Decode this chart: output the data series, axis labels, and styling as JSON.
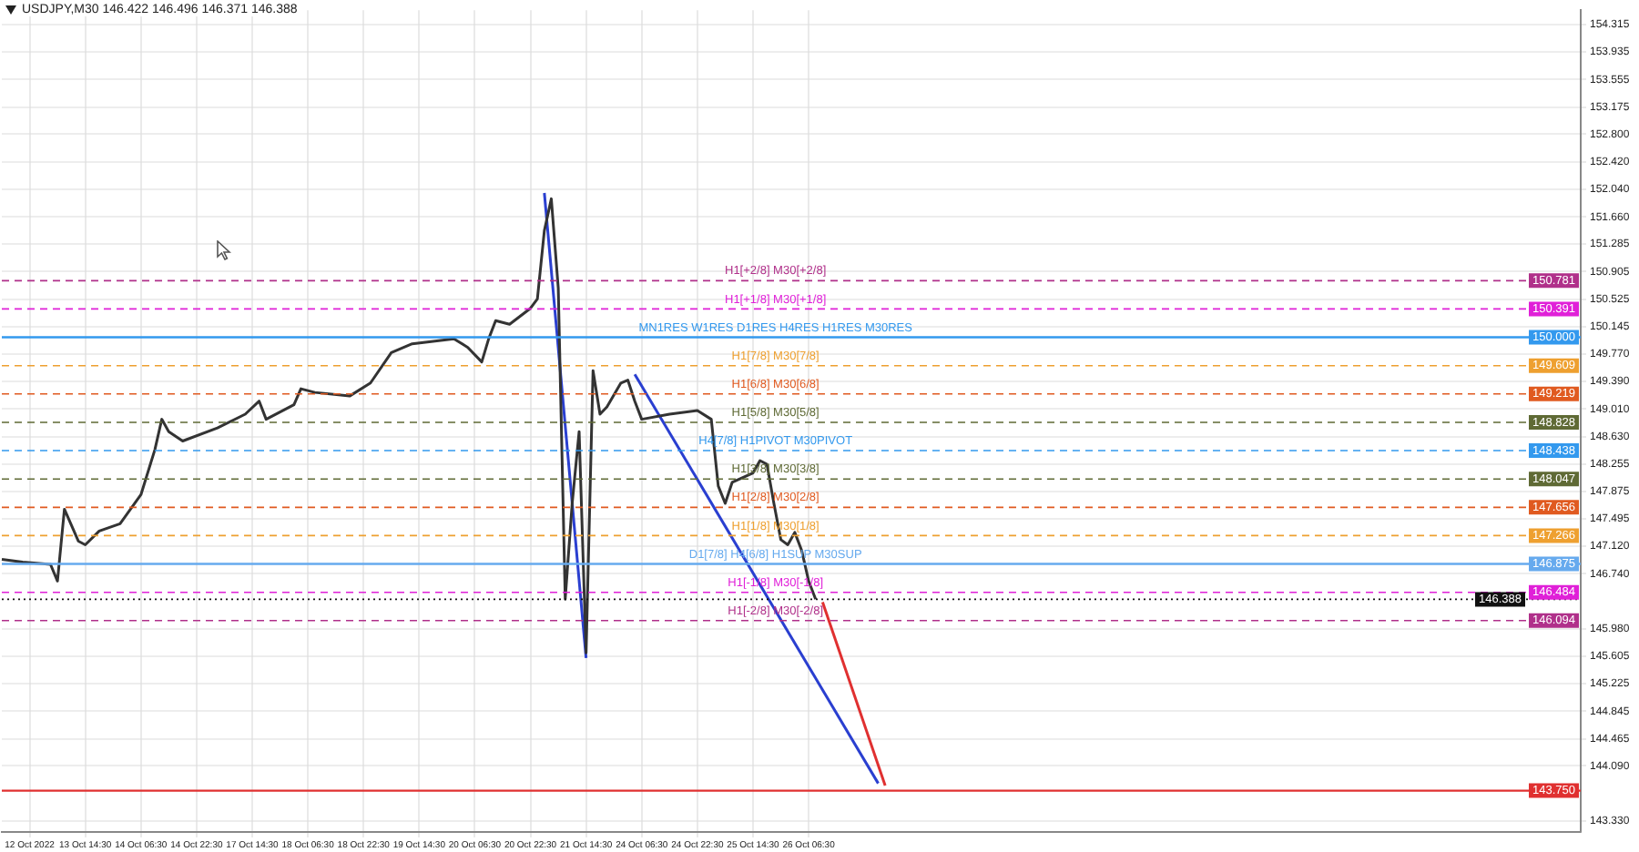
{
  "chart_data": {
    "type": "line",
    "title": "USDJPY,M30  146.422 146.496 146.371 146.388",
    "categories": [
      null,
      null,
      null,
      null,
      "12 Oct 2022",
      null,
      null,
      null,
      null,
      null,
      null,
      null,
      "13 Oct 14:30",
      null,
      null,
      null,
      null,
      null,
      null,
      null,
      "14 Oct 06:30",
      null,
      null,
      null,
      null,
      null,
      null,
      null,
      "14 Oct 22:30",
      null,
      null,
      null,
      null,
      null,
      null,
      null,
      "17 Oct 14:30",
      null,
      null,
      null,
      null,
      null,
      null,
      null,
      "18 Oct 06:30",
      null,
      null,
      null,
      null,
      null,
      null,
      null,
      "18 Oct 22:30",
      null,
      null,
      null,
      null,
      null,
      null,
      null,
      "19 Oct 14:30",
      null,
      null,
      null,
      null,
      null,
      null,
      null,
      "20 Oct 06:30",
      null,
      null,
      null,
      null,
      null,
      null,
      null,
      "20 Oct 22:30",
      null,
      null,
      null,
      null,
      null,
      null,
      null,
      "21 Oct 14:30",
      null,
      null,
      null,
      null,
      null,
      null,
      null,
      "24 Oct 06:30",
      null,
      null,
      null,
      null,
      null,
      null,
      null,
      "24 Oct 22:30",
      null,
      null,
      null,
      null,
      null,
      null,
      null,
      "25 Oct 14:30",
      null,
      null,
      null,
      null,
      null,
      null,
      null,
      "26 Oct 06:30",
      null,
      null,
      null,
      null,
      null,
      null,
      null,
      null,
      null,
      null,
      null,
      null,
      null,
      null,
      null,
      null,
      null,
      null,
      null,
      null,
      null,
      null,
      null,
      null,
      null,
      null,
      null,
      null,
      null,
      null,
      null,
      null,
      null,
      null,
      null,
      null,
      null,
      null,
      null,
      null,
      null,
      null,
      null,
      null,
      null,
      null,
      null,
      null,
      null,
      null,
      null,
      null,
      null,
      null,
      null,
      null,
      null,
      null,
      null,
      null,
      null,
      null,
      null,
      null,
      null,
      null,
      null,
      null,
      null,
      null,
      null,
      null,
      null,
      null,
      null,
      null,
      null,
      null,
      null,
      null,
      null,
      null,
      null,
      null,
      null,
      null,
      null,
      null,
      null,
      null,
      null,
      null,
      null,
      null,
      null,
      null,
      null,
      null,
      null,
      null,
      null,
      null,
      null,
      null,
      null,
      null,
      null,
      null,
      null,
      null,
      null
    ],
    "ylim": [
      143.18,
      154.51
    ],
    "yticks": [
      154.315,
      153.935,
      153.555,
      153.175,
      {
        "value": 152.8,
        "label": "152.800"
      },
      {
        "value": 152.42,
        "label": "152.420"
      },
      {
        "value": 152.04,
        "label": "152.040"
      },
      {
        "value": 151.66,
        "label": "151.660"
      },
      151.285,
      150.905,
      150.525,
      150.145,
      {
        "value": 149.77,
        "label": "149.770"
      },
      {
        "value": 149.39,
        "label": "149.390"
      },
      {
        "value": 149.01,
        "label": "149.010"
      },
      {
        "value": 148.63,
        "label": "148.630"
      },
      148.255,
      147.875,
      147.495,
      {
        "value": 147.12,
        "label": "147.120"
      },
      {
        "value": 146.74,
        "label": "146.740"
      },
      {
        "value": 145.98,
        "label": "145.980"
      },
      145.605,
      145.225,
      144.845,
      144.465,
      {
        "value": 144.09,
        "label": "144.090"
      },
      {
        "value": 143.33,
        "label": "143.330"
      }
    ],
    "grid": true,
    "legend": false,
    "series": [
      {
        "color": "#333333",
        "values": [
          146.94,
          null,
          null,
          146.9,
          null,
          null,
          null,
          146.87,
          146.64,
          147.63,
          null,
          147.19,
          147.14,
          null,
          147.33,
          null,
          null,
          147.43,
          null,
          null,
          147.83,
          null,
          148.45,
          148.87,
          148.7,
          null,
          148.57,
          null,
          null,
          null,
          null,
          148.75,
          null,
          null,
          null,
          148.94,
          null,
          149.12,
          148.87,
          null,
          null,
          null,
          149.07,
          149.29,
          null,
          149.24,
          null,
          null,
          null,
          null,
          149.19,
          null,
          null,
          149.37,
          null,
          null,
          149.79,
          null,
          null,
          149.91,
          null,
          null,
          null,
          null,
          null,
          149.98,
          null,
          149.86,
          null,
          149.66,
          149.98,
          150.23,
          null,
          150.18,
          null,
          null,
          150.4,
          150.53,
          151.47,
          151.91,
          150.68,
          146.39,
          147.71,
          148.7,
          145.65,
          149.54,
          148.94,
          149.04,
          null,
          149.37,
          149.41,
          149.12,
          148.87,
          null,
          null,
          null,
          148.94,
          null,
          null,
          null,
          148.99,
          null,
          148.87,
          147.95,
          147.71,
          148.0,
          null,
          null,
          148.13,
          148.3,
          148.25,
          147.71,
          147.21,
          147.14,
          147.31,
          147.06,
          146.64,
          146.39,
          null,
          null,
          null,
          null,
          null,
          null,
          null,
          null,
          null,
          null,
          null,
          null,
          null,
          null,
          null,
          null,
          null,
          null,
          null,
          null,
          null,
          null,
          null,
          null,
          null,
          null,
          null,
          null,
          null,
          null,
          null,
          null,
          null,
          null,
          null,
          null,
          null,
          null,
          null,
          null,
          null,
          null,
          null,
          null,
          null,
          null,
          null,
          null,
          null,
          null,
          null,
          null,
          null,
          null,
          null,
          null,
          null,
          null,
          null,
          null,
          null,
          null,
          null,
          null,
          null,
          null,
          null,
          null,
          null,
          null,
          null,
          null,
          null,
          null,
          null,
          null,
          null,
          null,
          null,
          null,
          null,
          null,
          null,
          null,
          null,
          null,
          null,
          null,
          null,
          null,
          null,
          null,
          null,
          null,
          null,
          null,
          null,
          null,
          null,
          null,
          null,
          null,
          null,
          null,
          null,
          null,
          null,
          null,
          null,
          null
        ]
      },
      {
        "color": "#2a3fd0",
        "values": [
          null,
          null,
          null,
          null,
          null,
          null,
          null,
          null,
          null,
          null,
          null,
          null,
          null,
          null,
          null,
          null,
          null,
          null,
          null,
          null,
          null,
          null,
          null,
          null,
          null,
          null,
          null,
          null,
          null,
          null,
          null,
          null,
          null,
          null,
          null,
          null,
          null,
          null,
          null,
          null,
          null,
          null,
          null,
          null,
          null,
          null,
          null,
          null,
          null,
          null,
          null,
          null,
          null,
          null,
          null,
          null,
          null,
          null,
          null,
          null,
          null,
          null,
          null,
          null,
          null,
          null,
          null,
          null,
          null,
          null,
          null,
          null,
          null,
          null,
          null,
          null,
          null,
          null,
          151.99,
          null,
          null,
          null,
          null,
          null,
          145.58,
          null,
          null,
          null,
          null,
          null,
          null,
          null,
          null,
          null,
          null,
          null,
          null,
          null,
          null,
          null,
          null,
          null,
          null,
          null,
          null,
          null,
          null,
          null,
          null,
          null,
          null,
          null,
          null,
          null,
          null,
          null,
          null,
          null,
          null,
          null,
          null,
          null,
          null,
          null,
          null,
          null,
          null,
          null,
          null,
          null,
          null,
          null,
          null,
          null,
          null,
          null,
          null,
          null,
          null,
          null,
          null,
          null,
          null,
          null,
          null,
          null,
          null,
          null,
          null,
          null,
          null,
          null,
          null,
          null,
          null,
          null,
          null,
          null,
          null,
          null,
          null,
          null,
          null,
          null,
          null,
          null,
          null,
          null,
          null,
          null,
          null,
          null,
          null,
          null,
          null,
          null,
          null,
          null,
          null,
          null,
          null,
          null,
          null,
          null,
          null,
          null,
          null,
          null,
          null,
          null,
          null,
          null,
          null,
          null,
          null,
          null,
          null,
          null,
          null,
          null,
          null,
          null,
          null,
          null,
          null,
          null,
          null,
          null,
          null,
          null,
          null,
          null,
          null,
          null,
          null,
          null,
          null,
          null,
          null,
          null,
          null,
          null,
          null,
          null,
          null,
          null,
          null,
          null
        ]
      },
      {
        "color": "#2a3fd0",
        "values": [
          null,
          null,
          null,
          null,
          null,
          null,
          null,
          null,
          null,
          null,
          null,
          null,
          null,
          null,
          null,
          null,
          null,
          null,
          null,
          null,
          null,
          null,
          null,
          null,
          null,
          null,
          null,
          null,
          null,
          null,
          null,
          null,
          null,
          null,
          null,
          null,
          null,
          null,
          null,
          null,
          null,
          null,
          null,
          null,
          null,
          null,
          null,
          null,
          null,
          null,
          null,
          null,
          null,
          null,
          null,
          null,
          null,
          null,
          null,
          null,
          null,
          null,
          null,
          null,
          null,
          null,
          null,
          null,
          null,
          null,
          null,
          null,
          null,
          null,
          null,
          null,
          null,
          null,
          null,
          null,
          null,
          null,
          null,
          null,
          null,
          null,
          null,
          null,
          null,
          null,
          null,
          149.49,
          null,
          null,
          null,
          null,
          null,
          null,
          null,
          null,
          null,
          null,
          null,
          null,
          null,
          null,
          null,
          null,
          null,
          null,
          null,
          null,
          null,
          null,
          null,
          null,
          null,
          null,
          null,
          null,
          null,
          null,
          null,
          null,
          null,
          null,
          143.85,
          null,
          null,
          null,
          null,
          null,
          null,
          null,
          null,
          null,
          null,
          null,
          null,
          null,
          null,
          null,
          null,
          null,
          null,
          null,
          null,
          null,
          null,
          null,
          null,
          null,
          null,
          null,
          null,
          null,
          null,
          null,
          null,
          null,
          null,
          null,
          null,
          null,
          null,
          null,
          null,
          null,
          null,
          null,
          null,
          null,
          null,
          null,
          null,
          null,
          null,
          null,
          null,
          null,
          null,
          null,
          null,
          null,
          null,
          null,
          null,
          null,
          null,
          null,
          null,
          null,
          null,
          null,
          null,
          null,
          null,
          null,
          null,
          null,
          null,
          null,
          null,
          null,
          null,
          null,
          null,
          null,
          null,
          null,
          null,
          null,
          null,
          null,
          null,
          null,
          null,
          null,
          null,
          null,
          null,
          null,
          null,
          null,
          null,
          null,
          null,
          null
        ]
      },
      {
        "color": "#e03030",
        "values": [
          null,
          null,
          null,
          null,
          null,
          null,
          null,
          null,
          null,
          null,
          null,
          null,
          null,
          null,
          null,
          null,
          null,
          null,
          null,
          null,
          null,
          null,
          null,
          null,
          null,
          null,
          null,
          null,
          null,
          null,
          null,
          null,
          null,
          null,
          null,
          null,
          null,
          null,
          null,
          null,
          null,
          null,
          null,
          null,
          null,
          null,
          null,
          null,
          null,
          null,
          null,
          null,
          null,
          null,
          null,
          null,
          null,
          null,
          null,
          null,
          null,
          null,
          null,
          null,
          null,
          null,
          null,
          null,
          null,
          null,
          null,
          null,
          null,
          null,
          null,
          null,
          null,
          null,
          null,
          null,
          null,
          null,
          null,
          null,
          null,
          null,
          null,
          null,
          null,
          null,
          null,
          null,
          null,
          null,
          null,
          null,
          null,
          null,
          null,
          null,
          null,
          null,
          null,
          null,
          null,
          null,
          null,
          null,
          null,
          null,
          null,
          null,
          null,
          null,
          null,
          null,
          null,
          null,
          146.35,
          null,
          null,
          null,
          null,
          null,
          null,
          null,
          null,
          143.82,
          null,
          null,
          null,
          null,
          null,
          null,
          null,
          null,
          null,
          null,
          null,
          null,
          null,
          null,
          null,
          null,
          null,
          null,
          null,
          null,
          null,
          null,
          null,
          null,
          null,
          null,
          null,
          null,
          null,
          null,
          null,
          null,
          null,
          null,
          null,
          null,
          null,
          null,
          null,
          null,
          null,
          null,
          null,
          null,
          null,
          null,
          null,
          null,
          null,
          null,
          null,
          null,
          null,
          null,
          null,
          null,
          null,
          null,
          null,
          null,
          null,
          null,
          null,
          null,
          null,
          null,
          null,
          null,
          null,
          null,
          null,
          null,
          null,
          null,
          null,
          null,
          null,
          null,
          null,
          null,
          null,
          null,
          null,
          null,
          null,
          null,
          null,
          null,
          null,
          null,
          null,
          null,
          null,
          null,
          null,
          null,
          null,
          null,
          null,
          null
        ]
      }
    ],
    "ref_lines": [
      {
        "axis": "y",
        "value": 150.781,
        "label": "H1[+2/8] M30[+2/8]",
        "color": "#b0308a",
        "line_style": "dashed"
      },
      {
        "axis": "y",
        "value": 150.391,
        "label": "H1[+1/8] M30[+1/8]",
        "color": "#e020d8",
        "line_style": "dashed"
      },
      {
        "axis": "y",
        "value": 150.0,
        "label": "MN1RES W1RES D1RES H4RES H1RES M30RES",
        "color": "#3399ee",
        "line_style": "solid"
      },
      {
        "axis": "y",
        "value": 149.609,
        "label": "H1[7/8] M30[7/8]",
        "color": "#eea030",
        "line_style": "dashed"
      },
      {
        "axis": "y",
        "value": 149.219,
        "label": "H1[6/8] M30[6/8]",
        "color": "#e05a20",
        "line_style": "dashed"
      },
      {
        "axis": "y",
        "value": 148.828,
        "label": "H1[5/8] M30[5/8]",
        "color": "#5f6a35",
        "line_style": "dashed"
      },
      {
        "axis": "y",
        "value": 148.438,
        "label": "H4[7/8] H1PIVOT M30PIVOT",
        "color": "#3399ee",
        "line_style": "dashed"
      },
      {
        "axis": "y",
        "value": 148.047,
        "label": "H1[3/8] M30[3/8]",
        "color": "#5f6a35",
        "line_style": "dashed"
      },
      {
        "axis": "y",
        "value": 147.656,
        "label": "H1[2/8] M30[2/8]",
        "color": "#e05a20",
        "line_style": "dashed"
      },
      {
        "axis": "y",
        "value": 147.266,
        "label": "H1[1/8] M30[1/8]",
        "color": "#eea030",
        "line_style": "dashed"
      },
      {
        "axis": "y",
        "value": 146.875,
        "label": "D1[7/8] H4[6/8] H1SUP M30SUP",
        "color": "#66aaee",
        "line_style": "solid"
      },
      {
        "axis": "y",
        "value": 146.484,
        "label": "H1[-1/8] M30[-1/8]",
        "color": "#e020d8",
        "line_style": "dashed"
      },
      {
        "axis": "y",
        "value": 146.388,
        "color": "#111111",
        "line_style": "dotted"
      },
      {
        "axis": "y",
        "value": 146.094,
        "label": "H1[-2/8] M30[-2/8]",
        "color": "#b0308a",
        "line_style": "dashed"
      },
      {
        "axis": "y",
        "value": 143.75,
        "color": "#e03030",
        "line_style": "solid"
      }
    ],
    "annotations": [
      {
        "text": "150.781",
        "y": 150.781
      },
      {
        "text": "150.391",
        "y": 150.391
      },
      {
        "text": "150.000",
        "y": 150.0
      },
      {
        "text": "149.609",
        "y": 149.609
      },
      {
        "text": "149.219",
        "y": 149.219
      },
      {
        "text": "148.828",
        "y": 148.828
      },
      {
        "text": "148.438",
        "y": 148.438
      },
      {
        "text": "148.047",
        "y": 148.047
      },
      {
        "text": "147.656",
        "y": 147.656
      },
      {
        "text": "147.266",
        "y": 147.266
      },
      {
        "text": "146.875",
        "y": 146.875
      },
      {
        "text": "146.484",
        "y": 146.484
      },
      {
        "text": "146.388",
        "y": 146.388
      },
      {
        "text": "146.094",
        "y": 146.094
      },
      {
        "text": "143.750",
        "y": 143.75
      }
    ]
  }
}
